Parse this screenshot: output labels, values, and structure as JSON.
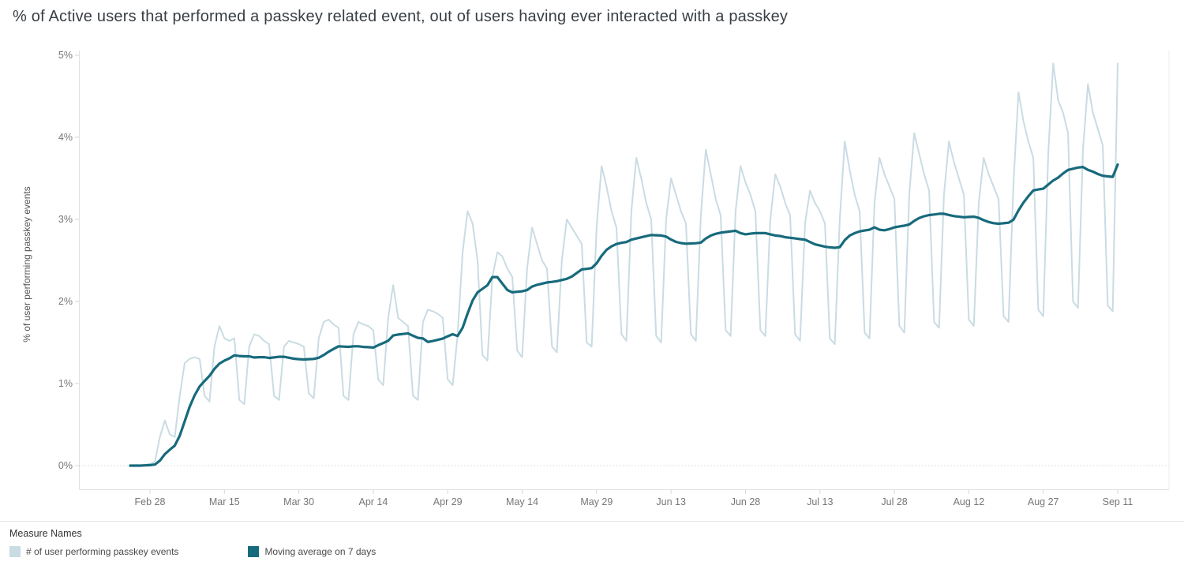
{
  "page": {
    "background": "#ffffff"
  },
  "legend": {
    "title": "Measure Names"
  },
  "chart_data": {
    "type": "line",
    "title": "% of Active users that performed a passkey related event, out of users having ever interacted with a passkey",
    "xlabel": "",
    "ylabel": "% of user performing passkey events",
    "ylim": [
      0,
      5
    ],
    "grid": "dotted horizontal line at 0% only",
    "legend_position": "bottom-left",
    "x_range": [
      "Feb 24",
      "Sep 11"
    ],
    "x_unit": "day index starting at Feb 24 (daily data, weekly dips on weekends)",
    "y_ticks": [
      {
        "value": 0,
        "label": "0%"
      },
      {
        "value": 1,
        "label": "1%"
      },
      {
        "value": 2,
        "label": "2%"
      },
      {
        "value": 3,
        "label": "3%"
      },
      {
        "value": 4,
        "label": "4%"
      },
      {
        "value": 5,
        "label": "5%"
      }
    ],
    "x_ticks": [
      {
        "day": 4,
        "label": "Feb 28"
      },
      {
        "day": 19,
        "label": "Mar 15"
      },
      {
        "day": 34,
        "label": "Mar 30"
      },
      {
        "day": 49,
        "label": "Apr 14"
      },
      {
        "day": 64,
        "label": "Apr 29"
      },
      {
        "day": 79,
        "label": "May 14"
      },
      {
        "day": 94,
        "label": "May 29"
      },
      {
        "day": 109,
        "label": "Jun 13"
      },
      {
        "day": 124,
        "label": "Jun 28"
      },
      {
        "day": 139,
        "label": "Jul 13"
      },
      {
        "day": 154,
        "label": "Jul 28"
      },
      {
        "day": 169,
        "label": "Aug 12"
      },
      {
        "day": 184,
        "label": "Aug 27"
      },
      {
        "day": 199,
        "label": "Sep 11"
      }
    ],
    "series": [
      {
        "name": "# of user performing passkey events",
        "color": "#c9dce3",
        "values": [
          0,
          0,
          0,
          0.01,
          0.02,
          0.05,
          0.35,
          0.55,
          0.38,
          0.35,
          0.85,
          1.25,
          1.3,
          1.32,
          1.3,
          0.85,
          0.78,
          1.45,
          1.7,
          1.55,
          1.52,
          1.55,
          0.8,
          0.75,
          1.45,
          1.6,
          1.58,
          1.52,
          1.48,
          0.85,
          0.8,
          1.45,
          1.52,
          1.5,
          1.48,
          1.45,
          0.88,
          0.82,
          1.55,
          1.75,
          1.78,
          1.72,
          1.68,
          0.85,
          0.8,
          1.6,
          1.75,
          1.72,
          1.7,
          1.65,
          1.05,
          0.98,
          1.8,
          2.2,
          1.8,
          1.75,
          1.7,
          0.85,
          0.8,
          1.75,
          1.9,
          1.88,
          1.85,
          1.8,
          1.05,
          0.98,
          1.6,
          2.6,
          3.1,
          2.95,
          2.5,
          1.35,
          1.28,
          2.3,
          2.6,
          2.55,
          2.4,
          2.3,
          1.4,
          1.32,
          2.4,
          2.9,
          2.7,
          2.5,
          2.4,
          1.45,
          1.38,
          2.5,
          3.0,
          2.9,
          2.8,
          2.7,
          1.5,
          1.45,
          2.9,
          3.65,
          3.4,
          3.1,
          2.9,
          1.6,
          1.52,
          3.1,
          3.75,
          3.5,
          3.2,
          3.0,
          1.58,
          1.5,
          3.0,
          3.5,
          3.3,
          3.1,
          2.95,
          1.6,
          1.52,
          3.05,
          3.85,
          3.55,
          3.25,
          3.05,
          1.65,
          1.58,
          3.1,
          3.65,
          3.45,
          3.3,
          3.1,
          1.65,
          1.58,
          3.0,
          3.55,
          3.4,
          3.2,
          3.05,
          1.6,
          1.52,
          2.95,
          3.35,
          3.2,
          3.1,
          2.95,
          1.55,
          1.48,
          3.0,
          3.95,
          3.6,
          3.3,
          3.1,
          1.62,
          1.55,
          3.2,
          3.75,
          3.55,
          3.4,
          3.25,
          1.7,
          1.62,
          3.3,
          4.05,
          3.8,
          3.55,
          3.35,
          1.75,
          1.68,
          3.3,
          3.95,
          3.7,
          3.5,
          3.3,
          1.78,
          1.7,
          3.2,
          3.75,
          3.55,
          3.4,
          3.25,
          1.82,
          1.75,
          3.45,
          4.55,
          4.2,
          3.95,
          3.75,
          1.9,
          1.82,
          3.8,
          4.9,
          4.45,
          4.3,
          4.05,
          2.0,
          1.92,
          3.85,
          4.65,
          4.3,
          4.1,
          3.9,
          1.95,
          1.88,
          4.9
        ]
      },
      {
        "name": "Moving average on 7 days",
        "color": "#176a7c",
        "window": 7,
        "derived": "trailing 7-day moving average of the first series"
      }
    ]
  }
}
